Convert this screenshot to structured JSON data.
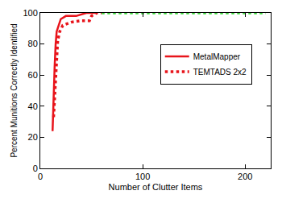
{
  "chart_data": {
    "type": "line",
    "x_label": "Number of Clutter Items",
    "y_label": "Percent Munitions Correctly Identified",
    "xlim": [
      0,
      225
    ],
    "xticks": [
      0,
      100,
      200
    ],
    "ylim": [
      0,
      100
    ],
    "yticks": [
      0,
      20,
      40,
      60,
      80,
      100
    ],
    "grid": false,
    "legend": "right",
    "series": [
      {
        "name": "MetalMapper",
        "color": "#e8141b",
        "line_style": "solid",
        "x": [
          12,
          13,
          14,
          15,
          16,
          18,
          20,
          25,
          35,
          45,
          55
        ],
        "values": [
          24,
          50,
          65,
          80,
          88,
          92,
          96,
          98,
          98,
          100,
          100
        ]
      },
      {
        "name": "TEMTADS 2x2",
        "color": "#e8141b",
        "line_style": "dotted",
        "x": [
          13,
          14,
          15,
          16,
          17,
          19,
          22,
          30,
          40,
          48,
          50,
          55,
          60
        ],
        "values": [
          33,
          45,
          60,
          72,
          82,
          88,
          92,
          94,
          95,
          95,
          98,
          100,
          100
        ]
      },
      {
        "color": "#3ddc3d",
        "line_style": "dotted",
        "x": [
          60,
          220
        ],
        "values": [
          100,
          100
        ]
      }
    ]
  }
}
